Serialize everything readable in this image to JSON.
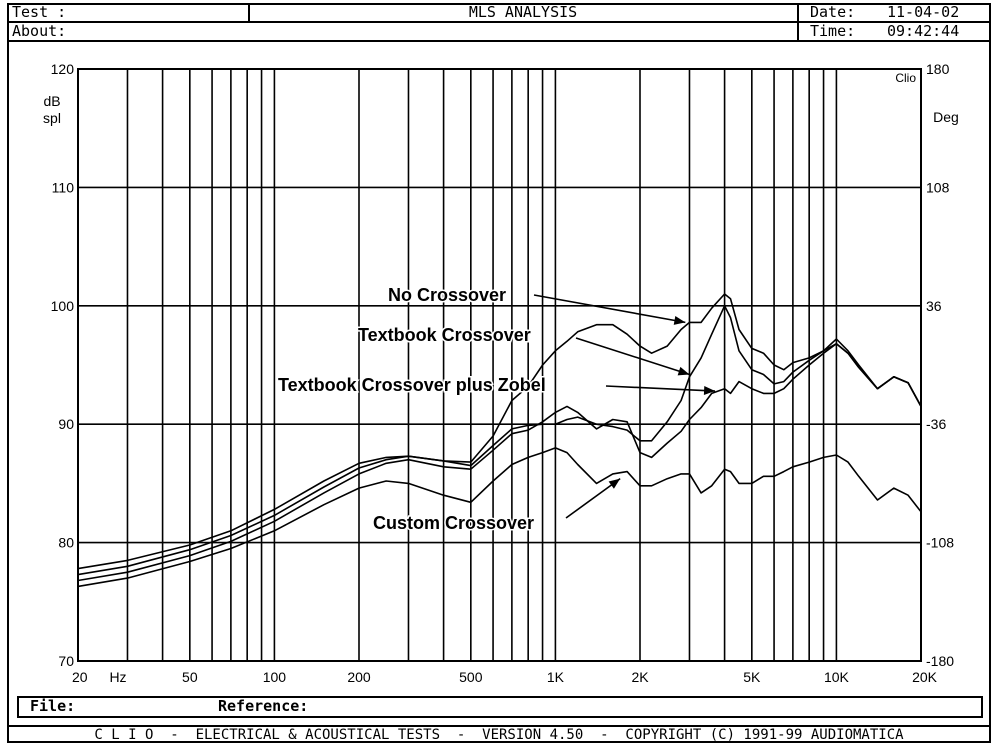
{
  "header": {
    "test_label": "Test :",
    "about_label": "About:",
    "title": "MLS ANALYSIS",
    "date_label": "Date:",
    "date_value": "11-04-02",
    "time_label": "Time:",
    "time_value": "09:42:44"
  },
  "file_row": {
    "file_label": "File:",
    "reference_label": "Reference:"
  },
  "footer": {
    "text": "C L I O  -  ELECTRICAL & ACOUSTICAL TESTS  -  VERSION 4.50  -  COPYRIGHT (C) 1991-99 AUDIOMATICA"
  },
  "chart_data": {
    "type": "line",
    "x_scale": "log",
    "xlim": [
      20,
      20000
    ],
    "ylim": [
      70,
      120
    ],
    "y2lim": [
      -180,
      180
    ],
    "ylabel": "dB\nspl",
    "y2label": "Deg",
    "x_unit_label": "Hz",
    "corner_label": "Clio",
    "x_tick_labels": [
      {
        "value": 20,
        "label": "20"
      },
      {
        "value": 50,
        "label": "50"
      },
      {
        "value": 100,
        "label": "100"
      },
      {
        "value": 200,
        "label": "200"
      },
      {
        "value": 500,
        "label": "500"
      },
      {
        "value": 1000,
        "label": "1K"
      },
      {
        "value": 2000,
        "label": "2K"
      },
      {
        "value": 5000,
        "label": "5K"
      },
      {
        "value": 10000,
        "label": "10K"
      },
      {
        "value": 20000,
        "label": "20K"
      }
    ],
    "y_ticks": [
      70,
      80,
      90,
      100,
      110,
      120
    ],
    "y2_ticks": [
      -180,
      -108,
      -36,
      36,
      108,
      180
    ],
    "grid": true,
    "series": [
      {
        "name": "No Crossover",
        "x": [
          20,
          30,
          50,
          70,
          100,
          150,
          200,
          250,
          300,
          400,
          500,
          600,
          700,
          800,
          900,
          1000,
          1100,
          1200,
          1400,
          1600,
          1800,
          2000,
          2200,
          2500,
          2800,
          3000,
          3300,
          3600,
          4000,
          4200,
          4500,
          5000,
          5500,
          6000,
          6500,
          7000,
          8000,
          9000,
          10000,
          11000,
          12000,
          14000,
          16000,
          18000,
          20000
        ],
        "y": [
          77.8,
          78.5,
          79.8,
          81.0,
          82.8,
          85.2,
          86.7,
          87.2,
          87.3,
          86.9,
          86.8,
          89.0,
          92.0,
          93.2,
          95.0,
          96.2,
          97.0,
          97.8,
          98.4,
          98.4,
          97.6,
          96.6,
          96.0,
          96.6,
          98.0,
          98.6,
          98.6,
          99.8,
          101.0,
          100.6,
          98.0,
          96.4,
          96.0,
          95.0,
          94.6,
          95.2,
          95.6,
          96.2,
          97.2,
          96.2,
          95.0,
          93.0,
          94.0,
          93.5,
          91.5
        ]
      },
      {
        "name": "Textbook Crossover",
        "x": [
          20,
          30,
          50,
          70,
          100,
          150,
          200,
          250,
          300,
          400,
          500,
          600,
          700,
          800,
          900,
          1000,
          1100,
          1200,
          1400,
          1600,
          1800,
          2000,
          2200,
          2500,
          2800,
          3000,
          3300,
          3600,
          4000,
          4200,
          4500,
          5000,
          5500,
          6000,
          6500,
          7000,
          8000,
          9000,
          10000,
          11000,
          12000,
          14000,
          16000,
          18000,
          20000
        ],
        "y": [
          77.3,
          78.0,
          79.4,
          80.6,
          82.3,
          84.7,
          86.3,
          87.0,
          87.3,
          86.9,
          86.5,
          88.2,
          89.6,
          89.9,
          90.0,
          90.0,
          90.4,
          90.6,
          90.0,
          89.8,
          89.5,
          88.6,
          88.6,
          90.2,
          92.0,
          94.0,
          95.6,
          97.6,
          100.0,
          99.0,
          96.2,
          94.6,
          94.2,
          93.4,
          93.6,
          94.4,
          95.4,
          96.2,
          96.8,
          96.0,
          94.8,
          93.0,
          94.0,
          93.5,
          91.5
        ]
      },
      {
        "name": "Textbook Crossover plus Zobel",
        "x": [
          20,
          30,
          50,
          70,
          100,
          150,
          200,
          250,
          300,
          400,
          500,
          600,
          700,
          800,
          900,
          1000,
          1100,
          1200,
          1400,
          1600,
          1800,
          2000,
          2200,
          2500,
          2800,
          3000,
          3300,
          3600,
          4000,
          4200,
          4500,
          5000,
          5500,
          6000,
          6500,
          7000,
          8000,
          9000,
          10000,
          11000,
          12000,
          14000,
          16000,
          18000,
          20000
        ],
        "y": [
          76.8,
          77.5,
          78.9,
          80.1,
          81.8,
          84.2,
          85.8,
          86.7,
          87.0,
          86.4,
          86.2,
          87.8,
          89.2,
          89.5,
          90.2,
          91.0,
          91.5,
          91.0,
          89.6,
          90.4,
          90.2,
          87.6,
          87.2,
          88.4,
          89.4,
          90.4,
          91.4,
          92.6,
          93.0,
          92.6,
          93.6,
          93.0,
          92.6,
          92.6,
          93.0,
          93.8,
          95.0,
          96.0,
          96.8,
          96.0,
          94.8,
          93.0,
          94.0,
          93.5,
          91.5
        ]
      },
      {
        "name": "Custom Crossover",
        "x": [
          20,
          30,
          50,
          70,
          100,
          150,
          200,
          250,
          300,
          400,
          500,
          600,
          700,
          800,
          900,
          1000,
          1100,
          1200,
          1400,
          1600,
          1800,
          2000,
          2200,
          2500,
          2800,
          3000,
          3300,
          3600,
          4000,
          4200,
          4500,
          5000,
          5500,
          6000,
          6500,
          7000,
          8000,
          9000,
          10000,
          11000,
          12000,
          14000,
          16000,
          18000,
          20000
        ],
        "y": [
          76.3,
          77.0,
          78.4,
          79.5,
          81.0,
          83.2,
          84.6,
          85.2,
          85.0,
          84.0,
          83.4,
          85.2,
          86.6,
          87.2,
          87.6,
          88.0,
          87.6,
          86.6,
          85.0,
          85.8,
          86.0,
          84.8,
          84.8,
          85.4,
          85.8,
          85.8,
          84.2,
          84.8,
          86.2,
          86.0,
          85.0,
          85.0,
          85.6,
          85.6,
          86.0,
          86.4,
          86.8,
          87.2,
          87.4,
          86.8,
          85.6,
          83.6,
          84.6,
          84.0,
          82.6
        ]
      }
    ],
    "annotations": [
      {
        "text": "No Crossover",
        "target_series": "No Crossover",
        "arrow_to": [
          2900,
          98.6
        ]
      },
      {
        "text": "Textbook Crossover",
        "target_series": "Textbook Crossover",
        "arrow_to": [
          3000,
          94.2
        ]
      },
      {
        "text": "Textbook Crossover plus Zobel",
        "target_series": "Textbook Crossover plus Zobel",
        "arrow_to": [
          3700,
          92.8
        ]
      },
      {
        "text": "Custom Crossover",
        "target_series": "Custom Crossover",
        "arrow_to": [
          1700,
          85.4
        ]
      }
    ]
  }
}
